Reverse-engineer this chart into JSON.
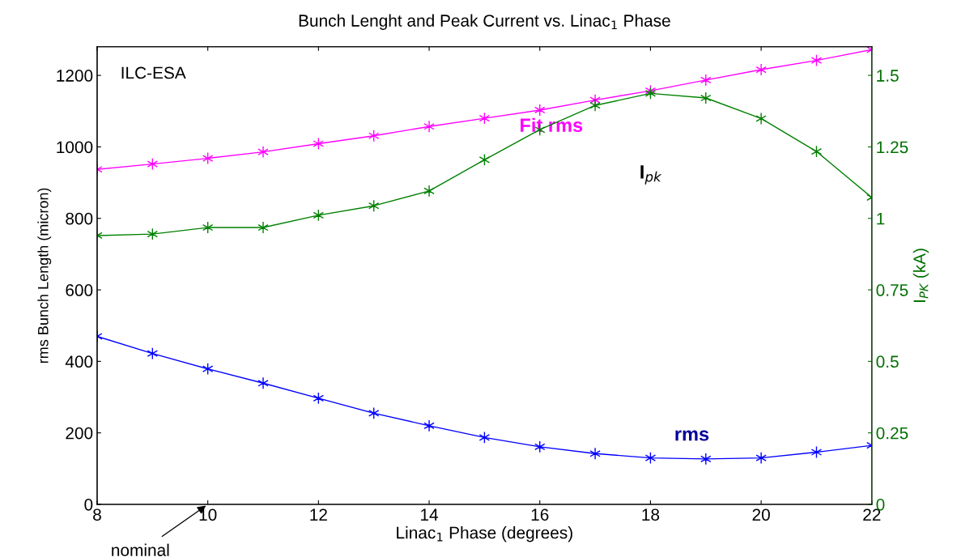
{
  "chart_data": {
    "type": "line",
    "title": "Bunch Lenght and Peak Current vs. Linac$_{1}$ Phase",
    "xlabel": "Linac$_{1}$ Phase (degrees)",
    "ylabel": "rms Bunch Length (micron)",
    "y2label": "I$_{PK}$ (kA)",
    "x": [
      8,
      9,
      10,
      11,
      12,
      13,
      14,
      15,
      16,
      17,
      18,
      19,
      20,
      21,
      22
    ],
    "series": [
      {
        "color": "#ff00ff",
        "values": [
          937,
          952,
          968,
          986,
          1009,
          1031,
          1057,
          1080,
          1103,
          1131,
          1157,
          1187,
          1216,
          1242,
          1272
        ]
      },
      {
        "color": "#008000",
        "axis": "y2",
        "values": [
          0.94,
          0.945,
          0.968,
          0.968,
          1.011,
          1.044,
          1.096,
          1.205,
          1.31,
          1.395,
          1.437,
          1.421,
          1.349,
          1.234,
          1.073
        ]
      },
      {
        "color": "#0000ff",
        "values": [
          470,
          422,
          379,
          339,
          297,
          255,
          220,
          187,
          161,
          142,
          130,
          127,
          130,
          146,
          165
        ]
      }
    ],
    "xlim": [
      8,
      22
    ],
    "xticks": [
      8,
      10,
      12,
      14,
      16,
      18,
      20,
      22
    ],
    "ylim": [
      0,
      1280
    ],
    "yticks": [
      0,
      200,
      400,
      600,
      800,
      1000,
      1200
    ],
    "y2lim": [
      0,
      1.6
    ],
    "y2ticks": [
      0,
      0.25,
      0.5,
      0.75,
      1,
      1.25,
      1.5
    ],
    "marker": "cross",
    "line_style": "solid",
    "grid": false,
    "legend": false,
    "annotations": [
      "ILC-ESA",
      "Fit rms",
      "I$_{pk}$",
      "rms",
      "nominal"
    ]
  }
}
